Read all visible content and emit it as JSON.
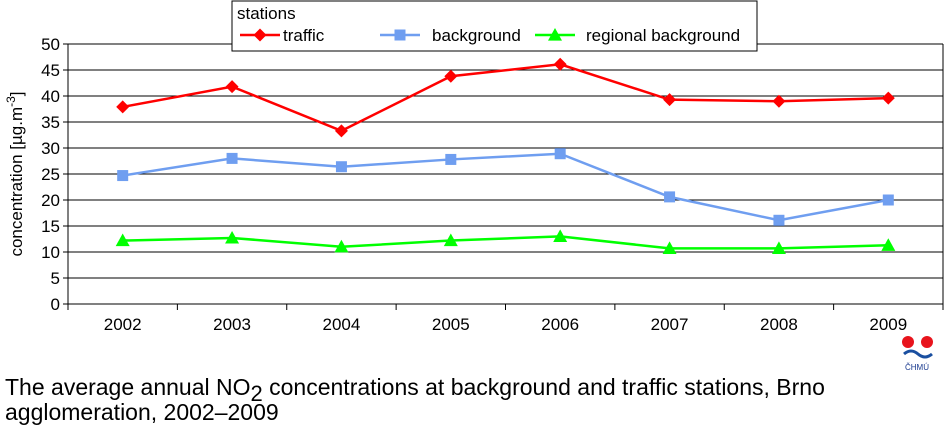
{
  "chart_data": {
    "type": "line",
    "categories": [
      "2002",
      "2003",
      "2004",
      "2005",
      "2006",
      "2007",
      "2008",
      "2009"
    ],
    "series": [
      {
        "name": "traffic",
        "color": "#ff0000",
        "marker": "diamond",
        "values": [
          37.9,
          41.8,
          33.3,
          43.8,
          46.1,
          39.3,
          39.0,
          39.6
        ]
      },
      {
        "name": "background",
        "color": "#6f9ef0",
        "marker": "square",
        "values": [
          24.7,
          28.0,
          26.4,
          27.8,
          28.9,
          20.6,
          16.1,
          20.0
        ]
      },
      {
        "name": "regional background",
        "color": "#00ff00",
        "marker": "triangle",
        "values": [
          12.2,
          12.7,
          11.0,
          12.2,
          13.0,
          10.7,
          10.7,
          11.3
        ]
      }
    ],
    "ylabel_main": "concentration  [µg.m",
    "ylabel_sup": "-3",
    "ylabel_end": "]",
    "yticks": [
      0,
      5,
      10,
      15,
      20,
      25,
      30,
      35,
      40,
      45,
      50
    ],
    "ylim": [
      0,
      50
    ],
    "grid": true,
    "legend_title": "stations",
    "legend_position": "top-center"
  },
  "caption": {
    "text1": "The average annual NO",
    "sub": "2",
    "text2": " concentrations at background and traffic stations, Brno agglomeration, 2002–2009"
  },
  "logo": {
    "text": "ČHMÚ",
    "red": "#e8141c",
    "blue": "#1a4fa0"
  }
}
